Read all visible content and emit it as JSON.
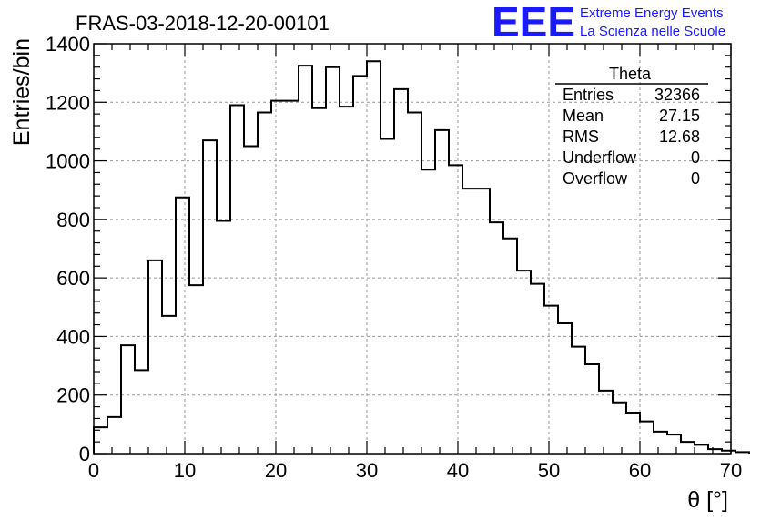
{
  "title": "FRAS-03-2018-12-20-00101",
  "logo": {
    "mark": "EEE",
    "line1": "Extreme Energy Events",
    "line2": "La Scienza nelle Scuole",
    "color": "#1a1aff"
  },
  "stats": {
    "name": "Theta",
    "rows": [
      {
        "label": "Entries",
        "value": "32366"
      },
      {
        "label": "Mean",
        "value": "27.15"
      },
      {
        "label": "RMS",
        "value": "12.68"
      },
      {
        "label": "Underflow",
        "value": "0"
      },
      {
        "label": "Overflow",
        "value": "0"
      }
    ]
  },
  "chart_data": {
    "type": "bar",
    "subtype": "histogram-step",
    "title": "FRAS-03-2018-12-20-00101",
    "xlabel": "θ [°]",
    "ylabel": "Entries/bin",
    "xlim": [
      0,
      70
    ],
    "ylim": [
      0,
      1400
    ],
    "xticks": [
      0,
      10,
      20,
      30,
      40,
      50,
      60,
      70
    ],
    "yticks": [
      0,
      200,
      400,
      600,
      800,
      1000,
      1200,
      1400
    ],
    "grid": true,
    "bin_width": 1.5,
    "bin_edges_start": 0,
    "values": [
      90,
      125,
      370,
      285,
      660,
      470,
      875,
      575,
      1070,
      795,
      1190,
      1050,
      1165,
      1205,
      1205,
      1325,
      1180,
      1320,
      1185,
      1290,
      1340,
      1075,
      1245,
      1165,
      970,
      1105,
      985,
      905,
      905,
      790,
      735,
      625,
      580,
      505,
      445,
      365,
      305,
      215,
      175,
      140,
      110,
      75,
      65,
      40,
      30,
      15,
      10,
      5
    ]
  }
}
